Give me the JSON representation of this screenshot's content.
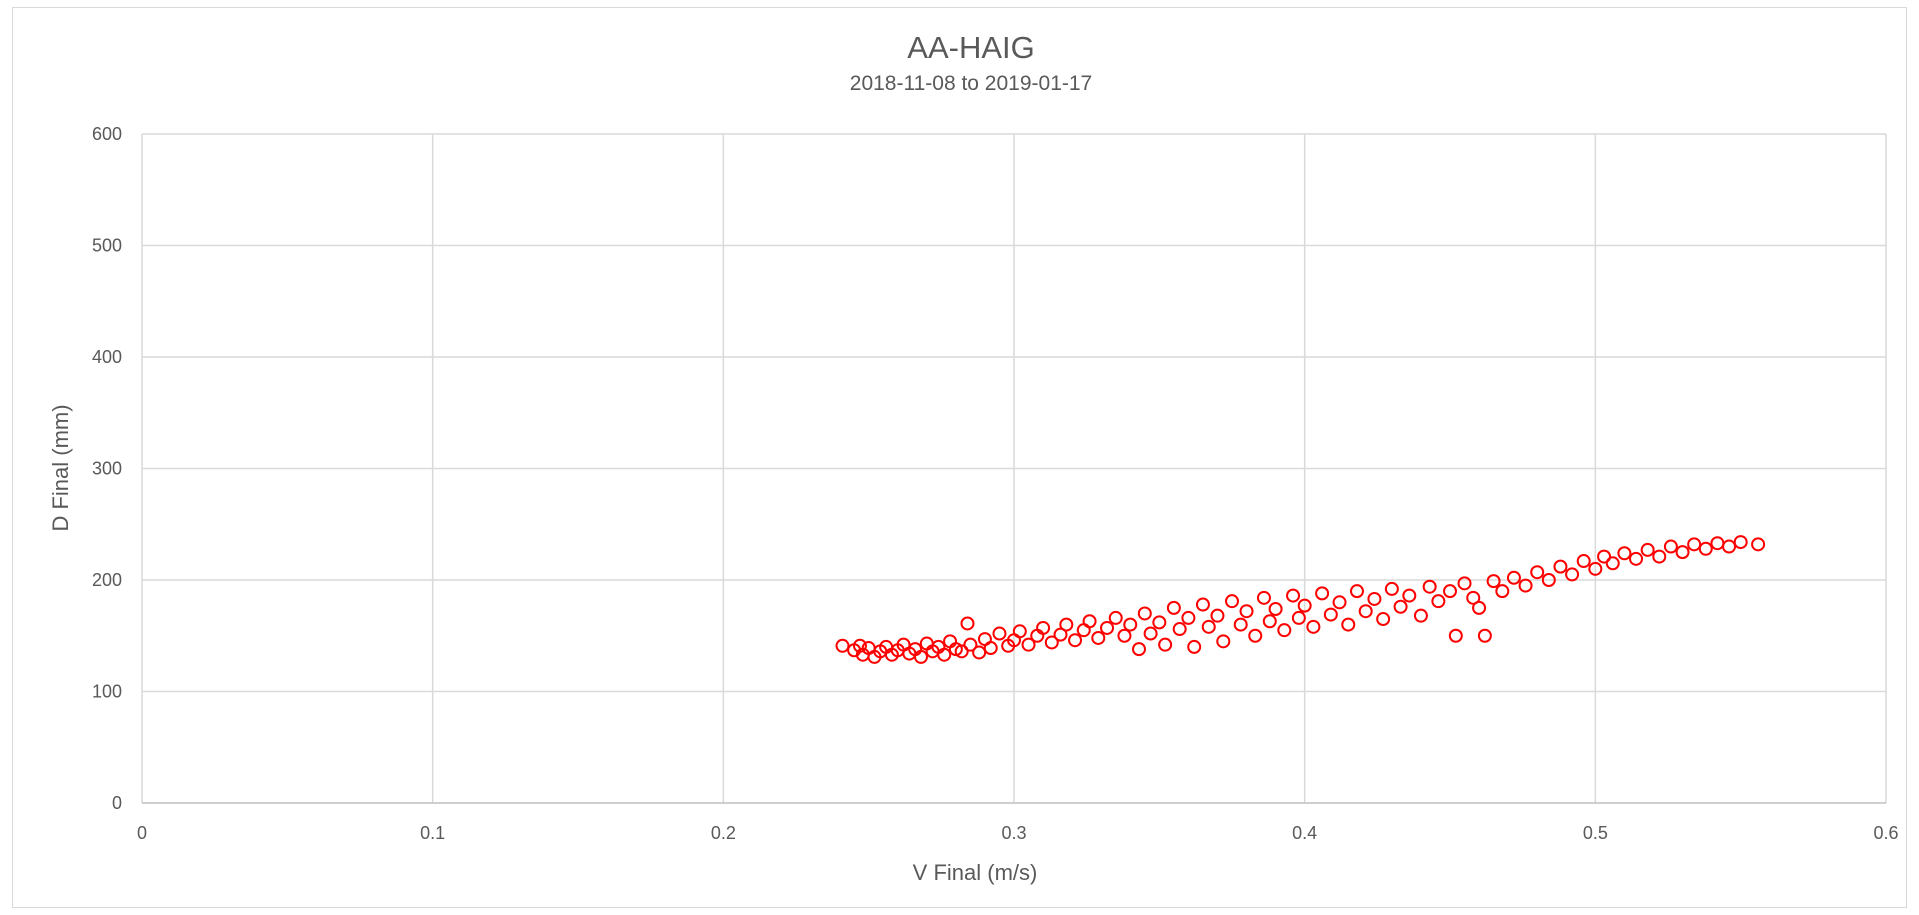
{
  "chart_data": {
    "type": "scatter",
    "title": "AA-HAIG",
    "subtitle": "2018-11-08 to 2019-01-17",
    "xlabel": "V Final (m/s)",
    "ylabel": "D Final (mm)",
    "xlim": [
      0,
      0.6
    ],
    "ylim": [
      0,
      600
    ],
    "x_ticks": [
      "0",
      "0.1",
      "0.2",
      "0.3",
      "0.4",
      "0.5",
      "0.6"
    ],
    "y_ticks": [
      "0",
      "100",
      "200",
      "300",
      "400",
      "500",
      "600"
    ],
    "grid": true,
    "legend": "none",
    "marker": "open-circle",
    "series_color": "#ff0000",
    "series": [
      {
        "values": [
          [
            0.241,
            141
          ],
          [
            0.245,
            137
          ],
          [
            0.247,
            141
          ],
          [
            0.248,
            133
          ],
          [
            0.25,
            139
          ],
          [
            0.252,
            131
          ],
          [
            0.254,
            136
          ],
          [
            0.256,
            140
          ],
          [
            0.258,
            133
          ],
          [
            0.26,
            137
          ],
          [
            0.262,
            142
          ],
          [
            0.264,
            134
          ],
          [
            0.266,
            138
          ],
          [
            0.268,
            131
          ],
          [
            0.27,
            143
          ],
          [
            0.272,
            136
          ],
          [
            0.274,
            140
          ],
          [
            0.276,
            133
          ],
          [
            0.278,
            145
          ],
          [
            0.28,
            138
          ],
          [
            0.282,
            136
          ],
          [
            0.284,
            161
          ],
          [
            0.285,
            142
          ],
          [
            0.288,
            135
          ],
          [
            0.29,
            147
          ],
          [
            0.292,
            139
          ],
          [
            0.295,
            152
          ],
          [
            0.298,
            141
          ],
          [
            0.3,
            146
          ],
          [
            0.302,
            154
          ],
          [
            0.305,
            142
          ],
          [
            0.308,
            150
          ],
          [
            0.31,
            157
          ],
          [
            0.313,
            144
          ],
          [
            0.316,
            151
          ],
          [
            0.318,
            160
          ],
          [
            0.321,
            146
          ],
          [
            0.324,
            155
          ],
          [
            0.326,
            163
          ],
          [
            0.329,
            148
          ],
          [
            0.332,
            157
          ],
          [
            0.335,
            166
          ],
          [
            0.338,
            150
          ],
          [
            0.34,
            160
          ],
          [
            0.343,
            138
          ],
          [
            0.345,
            170
          ],
          [
            0.347,
            152
          ],
          [
            0.35,
            162
          ],
          [
            0.352,
            142
          ],
          [
            0.355,
            175
          ],
          [
            0.357,
            156
          ],
          [
            0.36,
            166
          ],
          [
            0.362,
            140
          ],
          [
            0.365,
            178
          ],
          [
            0.367,
            158
          ],
          [
            0.37,
            168
          ],
          [
            0.372,
            145
          ],
          [
            0.375,
            181
          ],
          [
            0.378,
            160
          ],
          [
            0.38,
            172
          ],
          [
            0.383,
            150
          ],
          [
            0.386,
            184
          ],
          [
            0.388,
            163
          ],
          [
            0.39,
            174
          ],
          [
            0.393,
            155
          ],
          [
            0.396,
            186
          ],
          [
            0.398,
            166
          ],
          [
            0.4,
            177
          ],
          [
            0.403,
            158
          ],
          [
            0.406,
            188
          ],
          [
            0.409,
            169
          ],
          [
            0.412,
            180
          ],
          [
            0.415,
            160
          ],
          [
            0.418,
            190
          ],
          [
            0.421,
            172
          ],
          [
            0.424,
            183
          ],
          [
            0.427,
            165
          ],
          [
            0.43,
            192
          ],
          [
            0.433,
            176
          ],
          [
            0.436,
            186
          ],
          [
            0.44,
            168
          ],
          [
            0.443,
            194
          ],
          [
            0.446,
            181
          ],
          [
            0.45,
            190
          ],
          [
            0.452,
            150
          ],
          [
            0.455,
            197
          ],
          [
            0.458,
            184
          ],
          [
            0.46,
            175
          ],
          [
            0.462,
            150
          ],
          [
            0.465,
            199
          ],
          [
            0.468,
            190
          ],
          [
            0.472,
            202
          ],
          [
            0.476,
            195
          ],
          [
            0.48,
            207
          ],
          [
            0.484,
            200
          ],
          [
            0.488,
            212
          ],
          [
            0.492,
            205
          ],
          [
            0.496,
            217
          ],
          [
            0.5,
            210
          ],
          [
            0.503,
            221
          ],
          [
            0.506,
            215
          ],
          [
            0.51,
            224
          ],
          [
            0.514,
            219
          ],
          [
            0.518,
            227
          ],
          [
            0.522,
            221
          ],
          [
            0.526,
            230
          ],
          [
            0.53,
            225
          ],
          [
            0.534,
            232
          ],
          [
            0.538,
            228
          ],
          [
            0.542,
            233
          ],
          [
            0.546,
            230
          ],
          [
            0.55,
            234
          ],
          [
            0.556,
            232
          ]
        ]
      }
    ]
  }
}
